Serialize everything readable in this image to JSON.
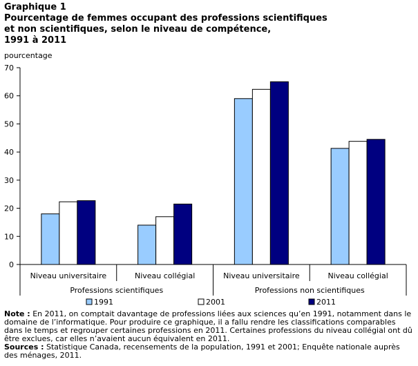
{
  "chart_label": "Graphique  1",
  "chart_title_lines": [
    "Pourcentage de femmes occupant des professions scientifiques",
    "et non scientifiques,  selon le niveau de compétence,",
    "1991 à 2011"
  ],
  "chart_data": {
    "type": "bar",
    "ylabel": "pourcentage",
    "xlabel": "",
    "ylim": [
      0,
      70
    ],
    "yticks": [
      0,
      10,
      20,
      30,
      40,
      50,
      60,
      70
    ],
    "grid": false,
    "legend_position": "bottom",
    "categories": [
      "Niveau universitaire",
      "Niveau collégial",
      "Niveau universitaire",
      "Niveau collégial"
    ],
    "groups": [
      {
        "label": "Professions scientifiques",
        "categories": [
          0,
          1
        ]
      },
      {
        "label": "Professions non scientifiques",
        "categories": [
          2,
          3
        ]
      }
    ],
    "series": [
      {
        "name": "1991",
        "color": "#99ccff",
        "values": [
          18,
          14,
          59,
          41.3
        ]
      },
      {
        "name": "2001",
        "color": "#ffffff",
        "values": [
          22.3,
          17,
          62.3,
          43.8
        ]
      },
      {
        "name": "2011",
        "color": "#000080",
        "values": [
          22.7,
          21.5,
          65,
          44.5
        ]
      }
    ]
  },
  "notes": {
    "note_label": "Note :",
    "note_text": "En 2011, on comptait davantage de professions liées aux sciences qu’en 1991, notamment dans le domaine de l’informatique. Pour produire ce graphique, il a fallu rendre les classifications comparables dans le temps et regrouper certaines professions en 2011. Certaines professions du niveau collégial ont dû être exclues, car elles n’avaient aucun équivalent en 2011.",
    "sources_label": "Sources :",
    "sources_text": "Statistique Canada, recensements de la population, 1991 et 2001; Enquête nationale auprès des ménages, 2011."
  }
}
